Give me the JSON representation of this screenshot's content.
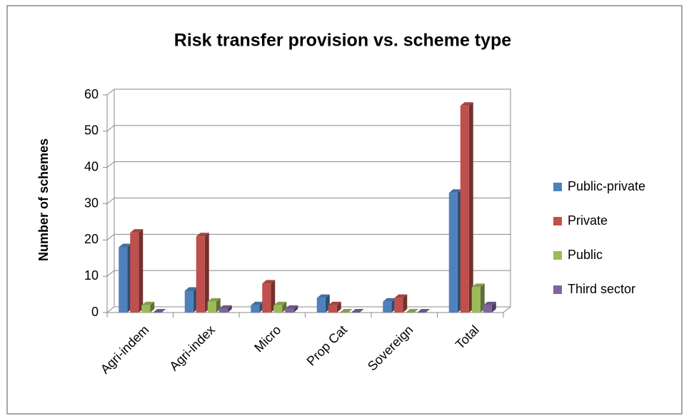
{
  "chart_data": {
    "type": "bar3d",
    "title": "Risk transfer provision vs. scheme type",
    "y_label": "Number of schemes",
    "categories": [
      "Agri-indem",
      "Agri-index",
      "Micro",
      "Prop Cat",
      "Sovereign",
      "Total"
    ],
    "series": [
      {
        "name": "Public-private",
        "color": "#4f81bd",
        "values": [
          18,
          6,
          2,
          4,
          3,
          33
        ]
      },
      {
        "name": "Private",
        "color": "#c0504d",
        "values": [
          22,
          21,
          8,
          2,
          4,
          57
        ]
      },
      {
        "name": "Public",
        "color": "#9bbb59",
        "values": [
          2,
          3,
          2,
          0,
          0,
          7
        ]
      },
      {
        "name": "Third sector",
        "color": "#8064a2",
        "values": [
          0,
          1,
          1,
          0,
          0,
          2
        ]
      }
    ],
    "ylim": [
      0,
      60
    ],
    "yticks": [
      0,
      10,
      20,
      30,
      40,
      50,
      60
    ],
    "grid": true,
    "legend": "right"
  }
}
